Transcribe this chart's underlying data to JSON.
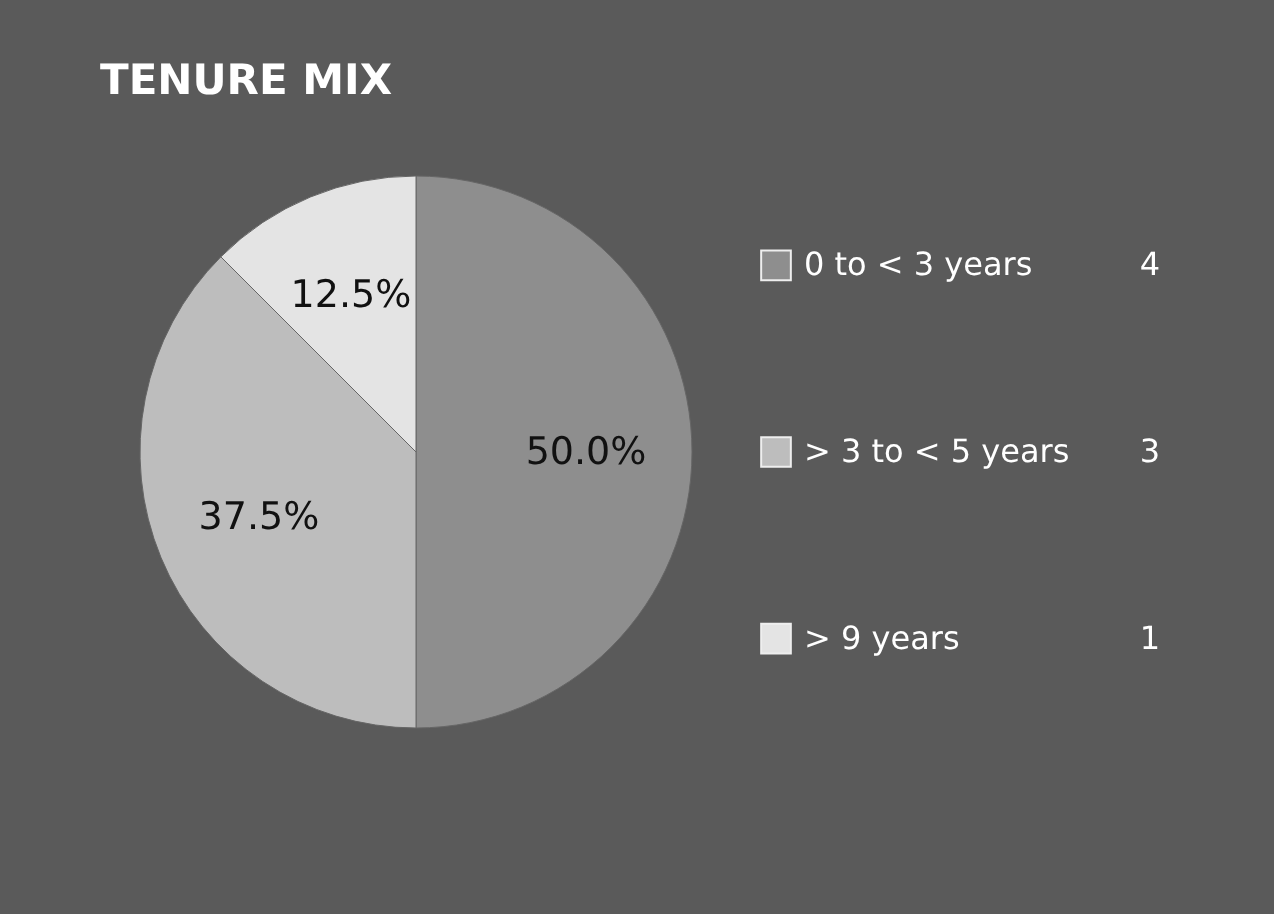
{
  "chart_data": {
    "type": "pie",
    "title": "TENURE MIX",
    "categories": [
      "0 to < 3 years",
      "> 3 to < 5 years",
      "> 9 years"
    ],
    "values": [
      50,
      37.5,
      12.5
    ],
    "colors": [
      "#8e8e8e",
      "#bdbdbd",
      "#e4e4e4"
    ],
    "value_labels": [
      "50.0%",
      "37.5%",
      "12.5%"
    ],
    "annotations": [
      "4",
      "3",
      "1"
    ],
    "legend": "right"
  }
}
